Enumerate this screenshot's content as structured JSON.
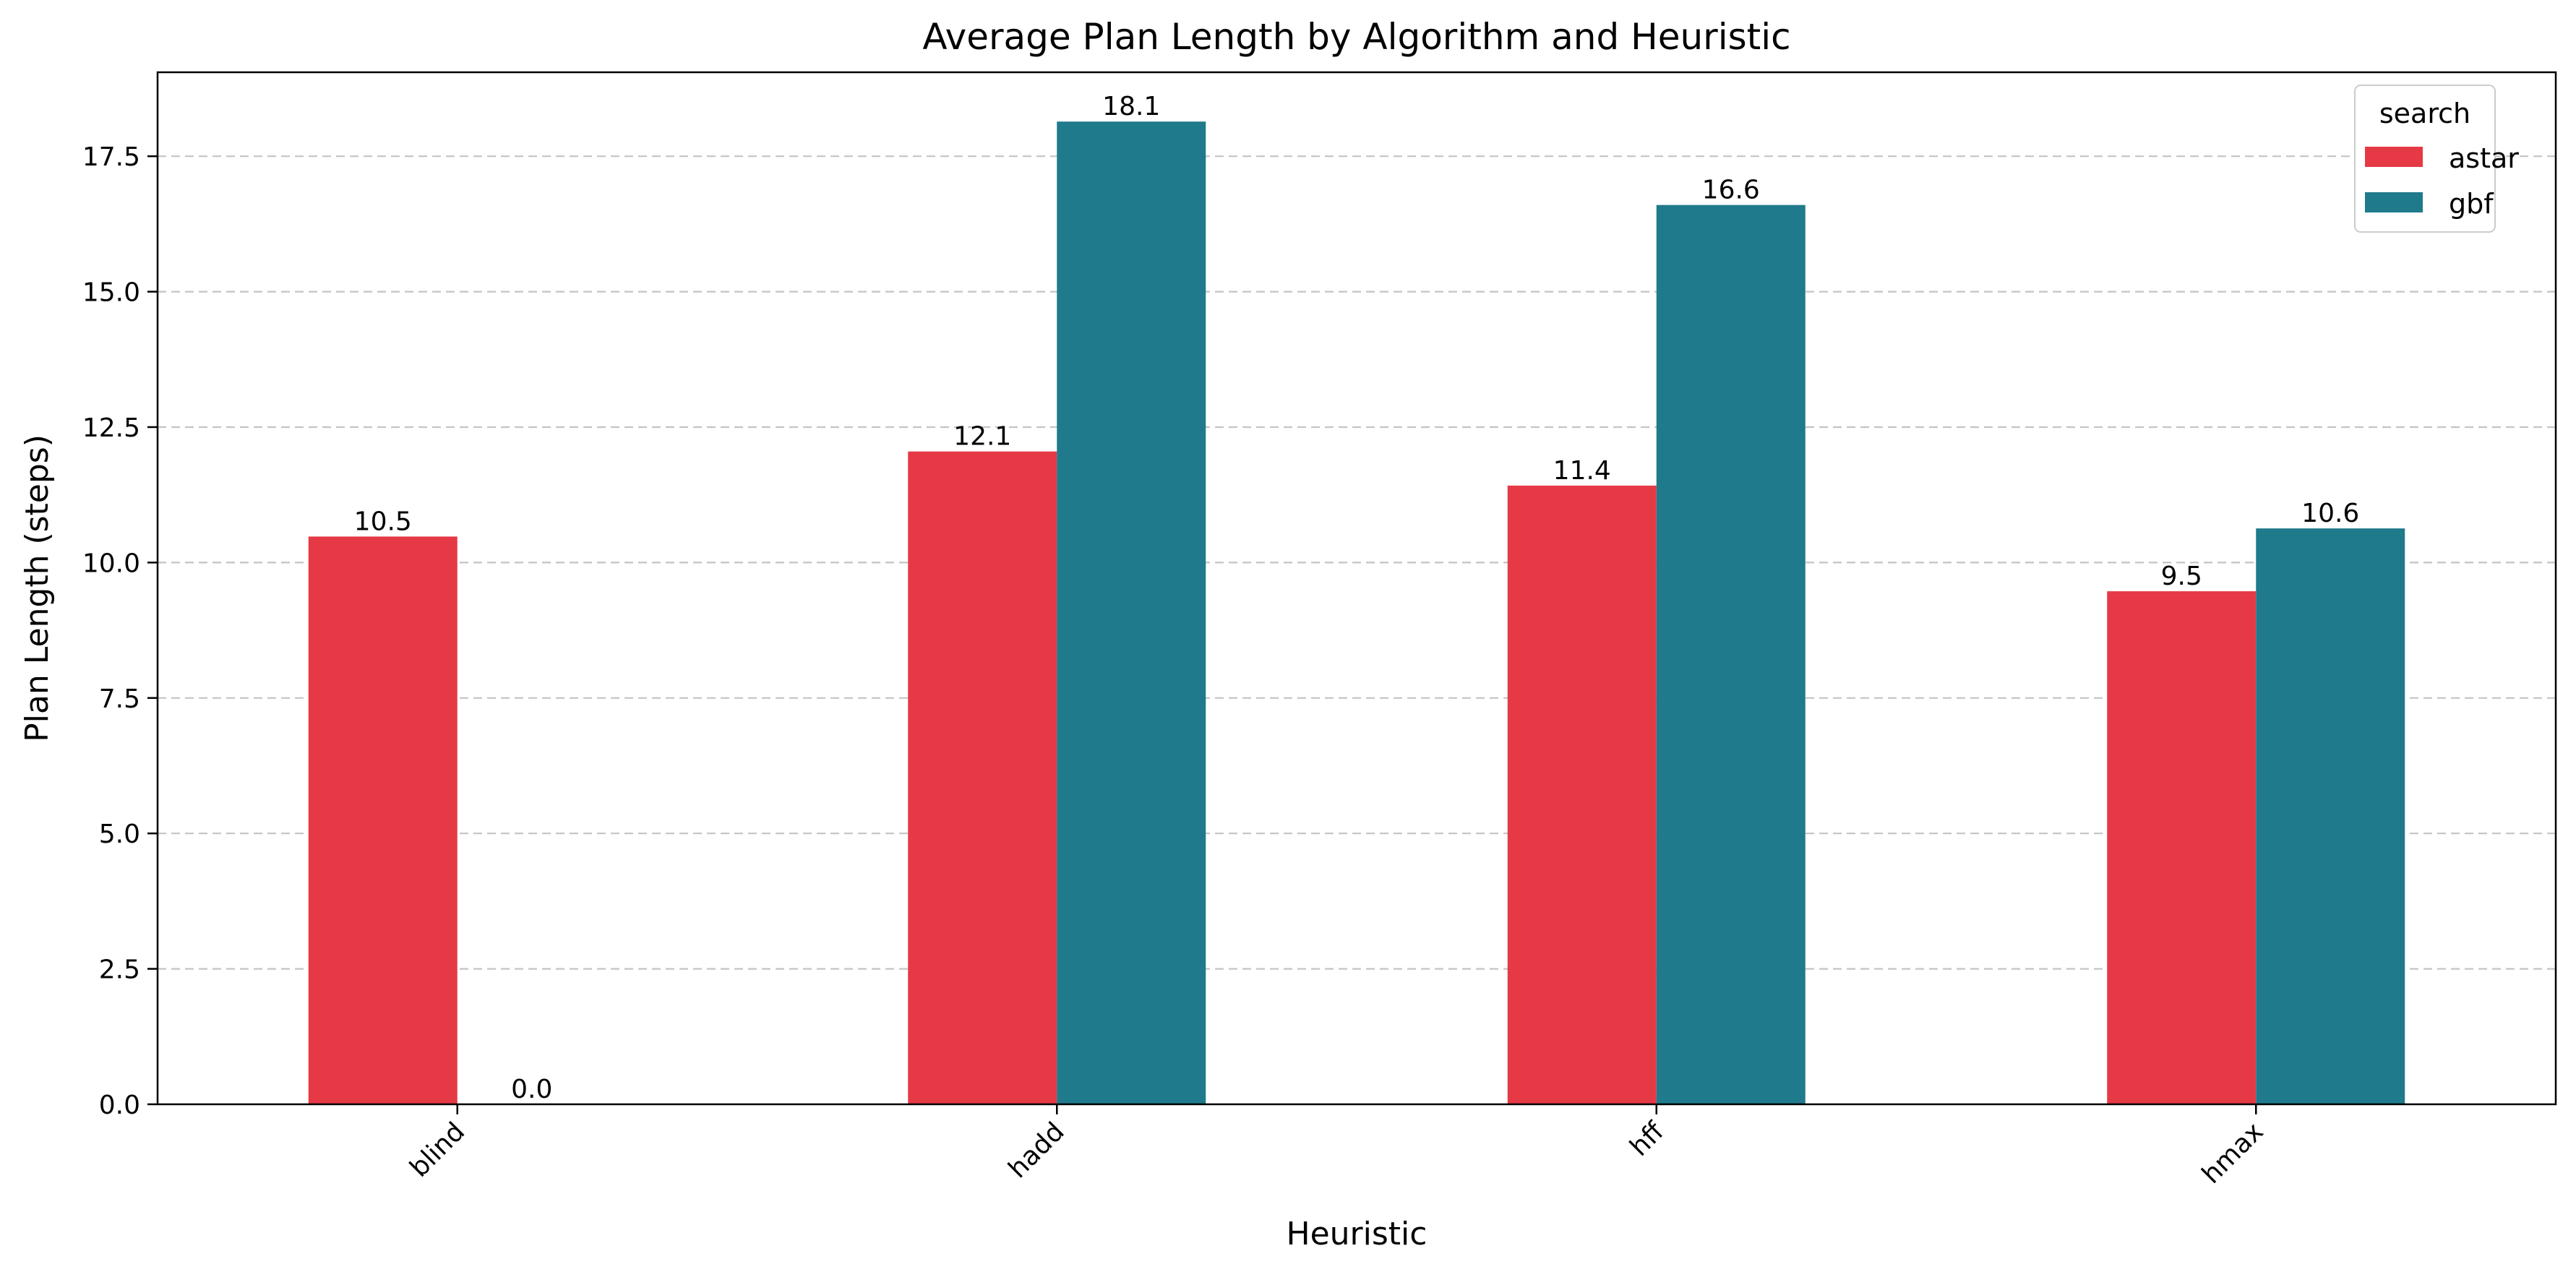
{
  "chart_data": {
    "type": "bar",
    "title": "Average Plan Length by Algorithm and Heuristic",
    "xlabel": "Heuristic",
    "ylabel": "Plan Length (steps)",
    "categories": [
      "blind",
      "hadd",
      "hff",
      "hmax"
    ],
    "series": [
      {
        "name": "astar",
        "color": "#e63946",
        "values": [
          10.48,
          12.05,
          11.42,
          9.47
        ],
        "labels": [
          "10.5",
          "12.1",
          "11.4",
          "9.5"
        ]
      },
      {
        "name": "gbf",
        "color": "#1f7a8c",
        "values": [
          0.0,
          18.14,
          16.6,
          10.63
        ],
        "labels": [
          "0.0",
          "18.1",
          "16.6",
          "10.6"
        ]
      }
    ],
    "ylim": [
      0,
      19.05
    ],
    "yticks": [
      0.0,
      2.5,
      5.0,
      7.5,
      10.0,
      12.5,
      15.0,
      17.5
    ],
    "ytick_labels": [
      "0.0",
      "2.5",
      "5.0",
      "7.5",
      "10.0",
      "12.5",
      "15.0",
      "17.5"
    ],
    "grid": {
      "y": true,
      "x": false,
      "style": "dashed",
      "color": "#c4c4c4"
    },
    "legend": {
      "title": "search",
      "placement": "top-right"
    },
    "xtick_rotation": 45
  }
}
